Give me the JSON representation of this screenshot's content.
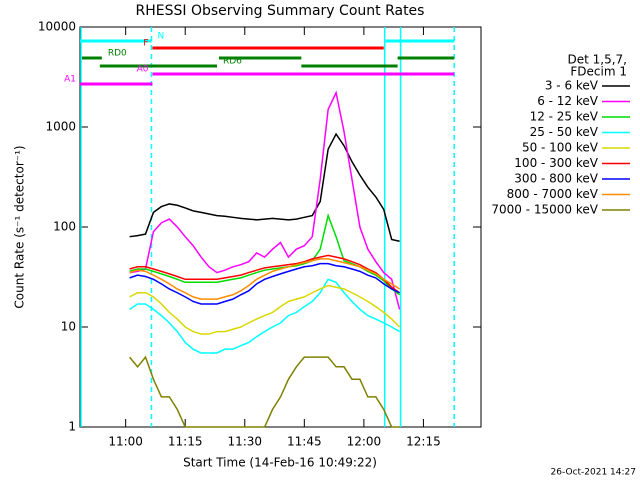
{
  "chart_data": {
    "type": "line",
    "title": "RHESSI Observing Summary Count Rates",
    "x_label": "Start Time (14-Feb-16 10:49:22)",
    "y_label": "Count Rate (s⁻¹ detector⁻¹)",
    "timestamp": "26-Oct-2021 14:27",
    "legend_title": [
      "Det 1,5,7,",
      "FDecim 1"
    ],
    "log_y": true,
    "xlim": [
      648.5,
      749.5
    ],
    "ylim": [
      1,
      10000
    ],
    "xticks": [
      {
        "value": 660,
        "label": "11:00"
      },
      {
        "value": 675,
        "label": "11:15"
      },
      {
        "value": 690,
        "label": "11:30"
      },
      {
        "value": 705,
        "label": "11:45"
      },
      {
        "value": 720,
        "label": "12:00"
      },
      {
        "value": 735,
        "label": "12:15"
      }
    ],
    "yticks": [
      1,
      10,
      100,
      1000,
      10000
    ],
    "x": [
      661,
      663,
      665,
      667,
      669,
      671,
      673,
      675,
      677,
      679,
      681,
      683,
      685,
      687,
      689,
      691,
      693,
      695,
      697,
      699,
      701,
      703,
      705,
      707,
      709,
      711,
      713,
      715,
      717,
      719,
      721,
      723,
      725,
      727,
      729
    ],
    "series": [
      {
        "name": "3 - 6 keV",
        "color": "#000000",
        "values": [
          80,
          82,
          85,
          140,
          160,
          170,
          165,
          155,
          145,
          140,
          135,
          130,
          128,
          125,
          122,
          120,
          118,
          120,
          122,
          120,
          118,
          120,
          125,
          130,
          180,
          600,
          850,
          650,
          450,
          330,
          250,
          200,
          150,
          75,
          72
        ]
      },
      {
        "name": "6 - 12 keV",
        "color": "#ff00ff",
        "values": [
          35,
          36,
          38,
          90,
          110,
          120,
          100,
          80,
          65,
          50,
          40,
          35,
          37,
          40,
          42,
          45,
          55,
          50,
          60,
          70,
          50,
          60,
          65,
          80,
          300,
          1500,
          2200,
          900,
          300,
          100,
          60,
          45,
          35,
          30,
          15
        ]
      },
      {
        "name": "12 - 25 keV",
        "color": "#00dd00",
        "values": [
          36,
          38,
          38,
          36,
          34,
          32,
          30,
          28,
          28,
          28,
          28,
          28,
          29,
          30,
          31,
          33,
          35,
          37,
          38,
          39,
          40,
          41,
          43,
          46,
          60,
          130,
          80,
          46,
          43,
          40,
          36,
          33,
          29,
          24,
          21
        ]
      },
      {
        "name": "25 - 50 keV",
        "color": "#00ffff",
        "values": [
          15,
          17,
          17,
          15,
          13,
          11,
          9,
          7,
          6,
          5.5,
          5.5,
          5.5,
          6,
          6,
          6.5,
          7,
          8,
          9,
          10,
          11,
          13,
          14,
          16,
          18,
          22,
          30,
          28,
          22,
          18,
          15,
          13,
          12,
          11,
          10,
          9
        ]
      },
      {
        "name": "50 - 100 keV",
        "color": "#d8d800",
        "values": [
          20,
          22,
          22,
          20,
          17,
          14,
          12,
          10,
          9,
          8.5,
          8.5,
          9,
          9,
          9.5,
          10,
          11,
          12,
          13,
          14,
          16,
          18,
          19,
          20,
          22,
          24,
          26,
          25,
          24,
          22,
          20,
          18,
          16,
          14,
          12,
          10
        ]
      },
      {
        "name": "100 - 300 keV",
        "color": "#ff0000",
        "values": [
          38,
          40,
          40,
          38,
          36,
          34,
          32,
          30,
          30,
          30,
          30,
          30,
          31,
          32,
          33,
          35,
          37,
          39,
          40,
          41,
          42,
          43,
          45,
          48,
          50,
          52,
          50,
          48,
          45,
          42,
          38,
          35,
          30,
          25,
          22
        ]
      },
      {
        "name": "300 - 800 keV",
        "color": "#0000ff",
        "values": [
          31,
          33,
          32,
          30,
          27,
          24,
          22,
          20,
          18,
          17,
          17,
          17,
          18,
          19,
          21,
          23,
          27,
          30,
          32,
          34,
          36,
          38,
          40,
          41,
          43,
          43,
          41,
          40,
          38,
          36,
          33,
          31,
          27,
          24,
          22
        ]
      },
      {
        "name": "800 - 7000 keV",
        "color": "#ff8c00",
        "values": [
          35,
          37,
          36,
          33,
          30,
          27,
          24,
          22,
          20,
          19,
          19,
          19,
          20,
          21,
          23,
          26,
          30,
          33,
          36,
          38,
          40,
          42,
          44,
          46,
          48,
          48,
          46,
          44,
          42,
          40,
          37,
          34,
          30,
          27,
          24
        ]
      },
      {
        "name": "7000 - 15000 keV",
        "color": "#808000",
        "values": [
          5,
          4,
          5,
          3,
          2,
          2,
          1.5,
          1,
          1,
          1,
          1,
          1,
          1,
          1,
          1,
          1,
          1,
          1,
          1.5,
          2,
          3,
          4,
          5,
          5,
          5,
          5,
          4,
          4,
          3,
          3,
          2,
          2,
          1.5,
          1,
          1
        ]
      }
    ],
    "flags": [
      {
        "label": "N",
        "color": "#00ffff",
        "intervals": [
          [
            648.5,
            666.5
          ],
          [
            725.5,
            742.75
          ]
        ]
      },
      {
        "label": "F",
        "color": "#ff0000",
        "intervals": [
          [
            666.75,
            725
          ]
        ]
      },
      {
        "label": "RD0",
        "color": "#008000",
        "intervals": [
          [
            649,
            654
          ],
          [
            683.5,
            704.25
          ],
          [
            728.5,
            742.75
          ]
        ]
      },
      {
        "label": "RD6",
        "color": "#008000",
        "intervals": [
          [
            653.5,
            683
          ],
          [
            704.25,
            728.5
          ]
        ]
      },
      {
        "label": "A0",
        "color": "#ff00ff",
        "intervals": [
          [
            666.75,
            742.75
          ]
        ]
      },
      {
        "label": "A1",
        "color": "#ff00ff",
        "intervals": [
          [
            648.5,
            666.75
          ]
        ]
      }
    ],
    "vlines": [
      {
        "x": 648.75,
        "style": "solid"
      },
      {
        "x": 666.5,
        "style": "dashed"
      },
      {
        "x": 725.25,
        "style": "solid"
      },
      {
        "x": 729.25,
        "style": "solid"
      },
      {
        "x": 742.75,
        "style": "dashed"
      }
    ],
    "vline_color": "#00ffff"
  }
}
